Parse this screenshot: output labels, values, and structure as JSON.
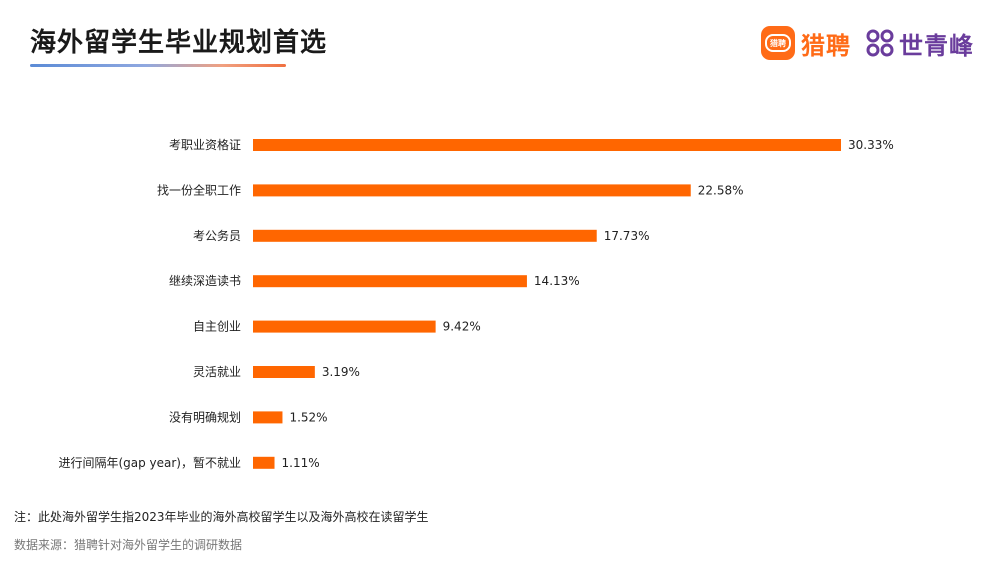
{
  "header": {
    "title": "海外留学生毕业规划首选"
  },
  "logos": {
    "liepin_icon_text": "猎聘",
    "liepin_name": "猎聘",
    "sqf_mark_icon": "shiqingfeng-mark-icon",
    "sqf_name": "世青峰",
    "liepin_color": "#ff6b17",
    "sqf_color": "#6a3c9c"
  },
  "chart_data": {
    "type": "bar",
    "orientation": "horizontal",
    "categories": [
      "考职业资格证",
      "找一份全职工作",
      "考公务员",
      "继续深造读书",
      "自主创业",
      "灵活就业",
      "没有明确规划",
      "进行间隔年(gap year)，暂不就业"
    ],
    "values": [
      30.33,
      22.58,
      17.73,
      14.13,
      9.42,
      3.19,
      1.52,
      1.11
    ],
    "value_labels": [
      "30.33%",
      "22.58%",
      "17.73%",
      "14.13%",
      "9.42%",
      "3.19%",
      "1.52%",
      "1.11%"
    ],
    "unit": "%",
    "bar_color": "#ff6600",
    "xlim": [
      0,
      30.33
    ],
    "grid": false,
    "legend": "none"
  },
  "footer": {
    "note": "注：此处海外留学生指2023年毕业的海外高校留学生以及海外高校在读留学生",
    "source": "数据来源：猎聘针对海外留学生的调研数据"
  }
}
